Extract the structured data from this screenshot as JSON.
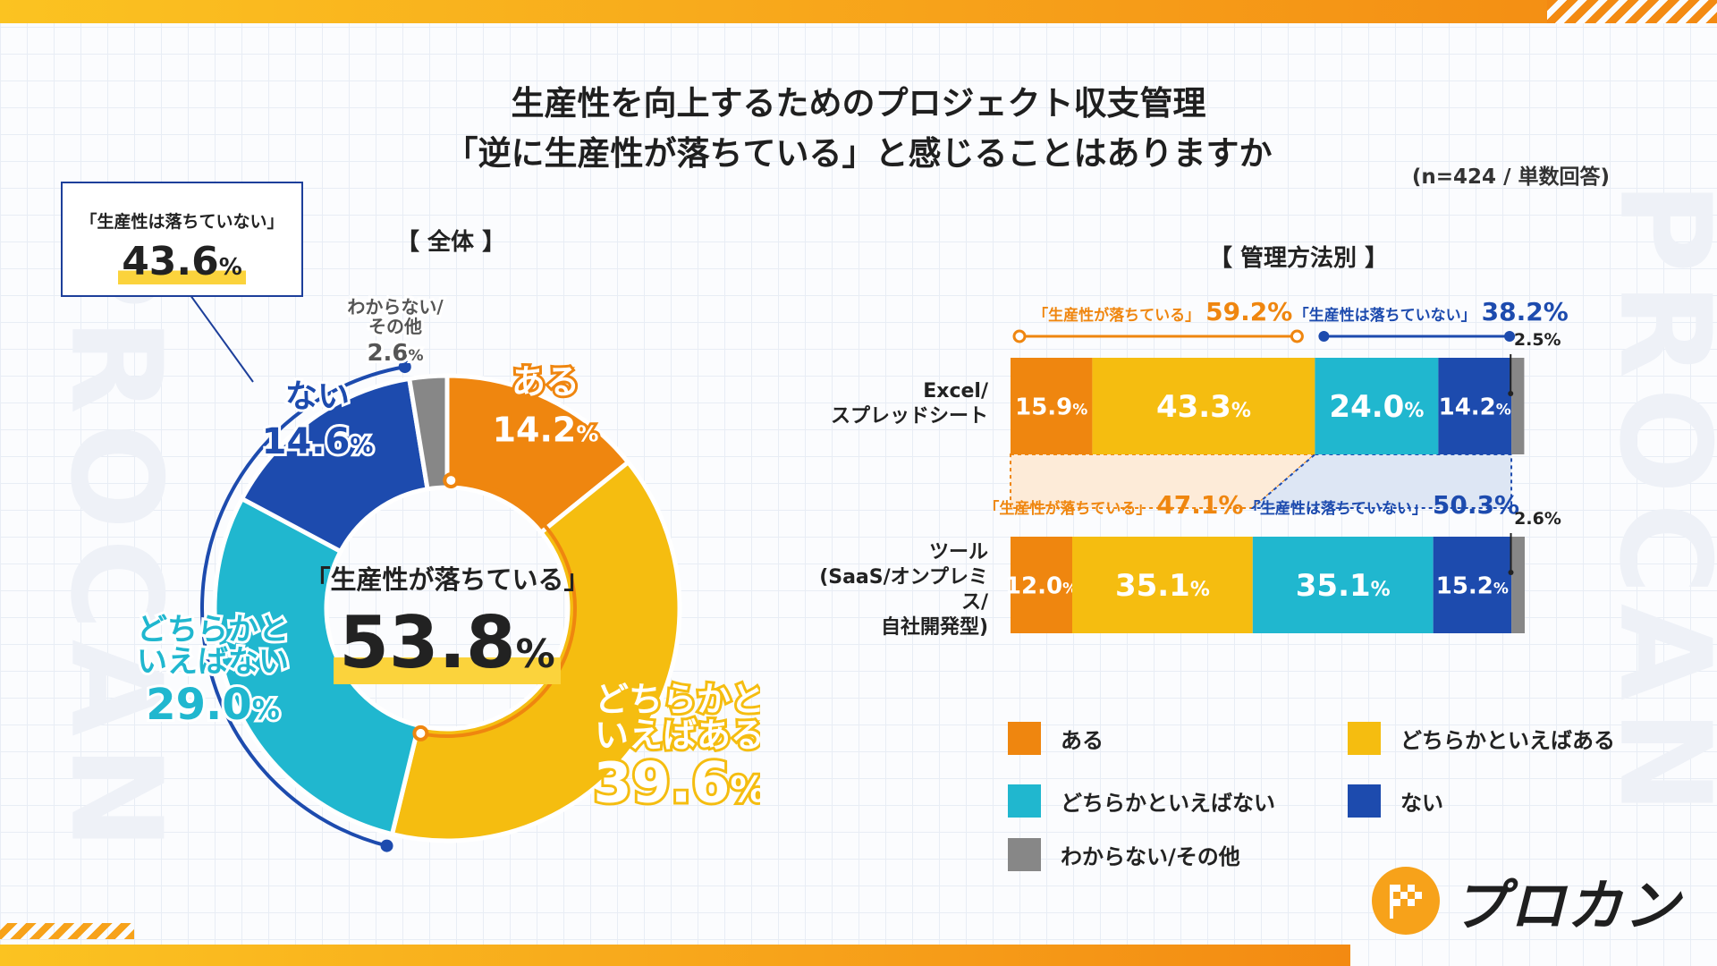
{
  "title_line1": "生産性を向上するためのプロジェクト収支管理",
  "title_line2": "「逆に生産性が落ちている」と感じることはありますか",
  "sample_note": "(n=424 / 単数回答)",
  "watermark": "PROCAN",
  "logo_text": "プロカン",
  "overall": {
    "section_label": "【 全体 】",
    "callout_label": "「生産性は落ちていない」",
    "callout_value": "43.6",
    "center_label": "「生産性が落ちている」",
    "center_value": "53.8",
    "pct": "%"
  },
  "by_method": {
    "section_label": "【 管理方法別 】",
    "rows": [
      {
        "label_lines": [
          "Excel/",
          "スプレッドシート"
        ],
        "drop_label": "「生産性が落ちている」",
        "drop_value": "59.2%",
        "nodrop_label": "「生産性は落ちていない」",
        "nodrop_value": "38.2%",
        "other_value": "2.5%"
      },
      {
        "label_lines": [
          "ツール",
          "(SaaS/オンプレミス/",
          "自社開発型)"
        ],
        "drop_label": "「生産性が落ちている」",
        "drop_value": "47.1%",
        "nodrop_label": "「生産性は落ちていない」",
        "nodrop_value": "50.3%",
        "other_value": "2.6%"
      }
    ]
  },
  "legend": [
    {
      "label": "ある",
      "color": "#ef860f"
    },
    {
      "label": "どちらかといえばある",
      "color": "#f5bd10"
    },
    {
      "label": "どちらかといえばない",
      "color": "#20b7cf"
    },
    {
      "label": "ない",
      "color": "#1d4bae"
    },
    {
      "label": "わからない/その他",
      "color": "#878787"
    }
  ],
  "chart_data": [
    {
      "type": "pie",
      "title": "全体",
      "categories": [
        "ある",
        "どちらかといえばある",
        "どちらかといえばない",
        "ない",
        "わからない/その他"
      ],
      "slice_labels": [
        [
          "ある"
        ],
        [
          "どちらかと",
          "いえばある"
        ],
        [
          "どちらかと",
          "いえばない"
        ],
        [
          "ない"
        ],
        [
          "わからない/",
          "その他"
        ]
      ],
      "values": [
        14.2,
        39.6,
        29.0,
        14.6,
        2.6
      ],
      "colors": [
        "#ef860f",
        "#f5bd10",
        "#20b7cf",
        "#1d4bae",
        "#878787"
      ],
      "unit": "%"
    },
    {
      "type": "bar",
      "orientation": "horizontal-stacked",
      "title": "管理方法別",
      "categories": [
        "Excel/スプレッドシート",
        "ツール(SaaS/オンプレミス/自社開発型)"
      ],
      "series": [
        {
          "name": "ある",
          "values": [
            15.9,
            12.0
          ]
        },
        {
          "name": "どちらかといえばある",
          "values": [
            43.3,
            35.1
          ]
        },
        {
          "name": "どちらかといえばない",
          "values": [
            24.0,
            35.1
          ]
        },
        {
          "name": "ない",
          "values": [
            14.2,
            15.2
          ]
        },
        {
          "name": "わからない/その他",
          "values": [
            2.5,
            2.6
          ]
        }
      ],
      "xlim": [
        0,
        100
      ],
      "unit": "%"
    }
  ]
}
